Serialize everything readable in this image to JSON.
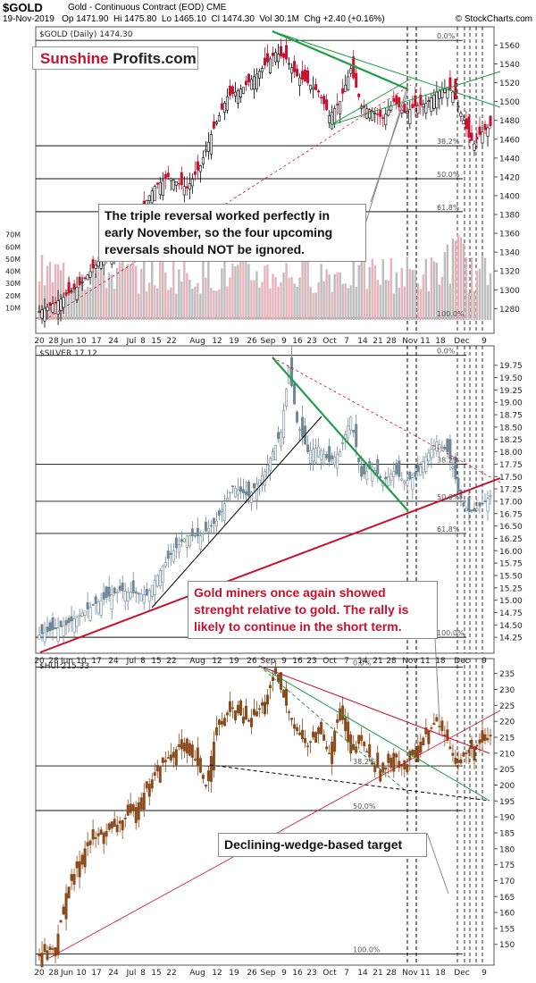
{
  "header": {
    "symbol": "$GOLD",
    "description": "Gold - Continuous Contract (EOD)  CME",
    "date": "19-Nov-2019",
    "ohlc": "Op 1471.90  Hi 1475.80  Lo 1465.10  Cl 1474.30  Vol 30.1M  Chg +2.40 (+0.16%)",
    "brand": "© StockCharts.com"
  },
  "logo": {
    "part1": "Sunshine",
    "part2": "Profits.com"
  },
  "annotations": {
    "gold_note": "The triple reversal worked perfectly in early November, so the four upcoming reversals should NOT be ignored.",
    "silver_note": "Gold miners once again showed strenght relative to gold. The rally is likely to continue in the short term.",
    "hui_note": "Declining-wedge-based target"
  },
  "x_axis_labels": [
    "20",
    "28",
    "Jun",
    "10",
    "17",
    "24",
    "Jul",
    "8",
    "15",
    "22",
    "Aug",
    "12",
    "19",
    "26",
    "Sep",
    "9",
    "16",
    "23",
    "Oct",
    "7",
    "14",
    "21",
    "28",
    "Nov",
    "11",
    "18",
    "Dec",
    "9"
  ],
  "chart_data": [
    {
      "type": "candlestick",
      "title": "$GOLD (Daily) 1474.30",
      "yticks": [
        1280,
        1300,
        1320,
        1340,
        1360,
        1380,
        1400,
        1420,
        1440,
        1460,
        1480,
        1500,
        1520,
        1540,
        1560
      ],
      "ylim": [
        1268,
        1568
      ],
      "volume_ticks": [
        "10M",
        "20M",
        "30M",
        "40M",
        "50M",
        "60M",
        "70M"
      ],
      "fib_labels": [
        "0.0%",
        "38.2%",
        "50.0%",
        "61.8%",
        "100.0%"
      ],
      "fib_levels": [
        1565,
        1453,
        1418,
        1383,
        1270
      ],
      "anchors": [
        [
          0,
          1277
        ],
        [
          8,
          1290
        ],
        [
          15,
          1305
        ],
        [
          22,
          1330
        ],
        [
          28,
          1346
        ],
        [
          33,
          1368
        ],
        [
          38,
          1385
        ],
        [
          43,
          1410
        ],
        [
          48,
          1420
        ],
        [
          55,
          1408
        ],
        [
          60,
          1432
        ],
        [
          64,
          1465
        ],
        [
          70,
          1505
        ],
        [
          76,
          1515
        ],
        [
          82,
          1532
        ],
        [
          88,
          1552
        ],
        [
          92,
          1545
        ],
        [
          96,
          1527
        ],
        [
          100,
          1520
        ],
        [
          104,
          1510
        ],
        [
          108,
          1485
        ],
        [
          112,
          1500
        ],
        [
          116,
          1535
        ],
        [
          120,
          1495
        ],
        [
          124,
          1490
        ],
        [
          128,
          1482
        ],
        [
          132,
          1500
        ],
        [
          136,
          1488
        ],
        [
          140,
          1495
        ],
        [
          144,
          1498
        ],
        [
          148,
          1510
        ],
        [
          152,
          1515
        ],
        [
          154,
          1510
        ],
        [
          156,
          1495
        ],
        [
          158,
          1480
        ],
        [
          160,
          1462
        ],
        [
          162,
          1455
        ],
        [
          164,
          1465
        ],
        [
          166,
          1470
        ],
        [
          168,
          1474.3
        ]
      ]
    },
    {
      "type": "candlestick",
      "title": "$SILVER 17.12",
      "yticks": [
        14.25,
        14.5,
        14.75,
        15.0,
        15.25,
        15.5,
        15.75,
        16.0,
        16.25,
        16.5,
        16.75,
        17.0,
        17.25,
        17.5,
        17.75,
        18.0,
        18.25,
        18.5,
        18.75,
        19.0,
        19.25,
        19.5,
        19.75
      ],
      "ylim": [
        14.18,
        19.98
      ],
      "fib_labels": [
        "0.0%",
        "38.2%",
        "50.0%",
        "61.8%",
        "100.0%"
      ],
      "fib_levels": [
        19.95,
        17.75,
        17.0,
        16.35,
        14.25
      ],
      "anchors": [
        [
          0,
          14.3
        ],
        [
          10,
          14.5
        ],
        [
          20,
          14.9
        ],
        [
          30,
          15.2
        ],
        [
          40,
          15.1
        ],
        [
          45,
          15.6
        ],
        [
          50,
          16.0
        ],
        [
          55,
          16.3
        ],
        [
          60,
          16.3
        ],
        [
          66,
          16.6
        ],
        [
          72,
          17.3
        ],
        [
          78,
          17.1
        ],
        [
          84,
          17.6
        ],
        [
          90,
          18.4
        ],
        [
          93,
          19.7
        ],
        [
          96,
          18.6
        ],
        [
          100,
          18.0
        ],
        [
          104,
          18.1
        ],
        [
          108,
          17.8
        ],
        [
          112,
          18.0
        ],
        [
          116,
          18.7
        ],
        [
          120,
          17.5
        ],
        [
          124,
          17.7
        ],
        [
          128,
          17.4
        ],
        [
          132,
          17.6
        ],
        [
          136,
          17.4
        ],
        [
          140,
          17.5
        ],
        [
          144,
          17.9
        ],
        [
          148,
          18.2
        ],
        [
          152,
          18.0
        ],
        [
          154,
          17.7
        ],
        [
          156,
          17.2
        ],
        [
          158,
          16.9
        ],
        [
          160,
          16.8
        ],
        [
          162,
          16.8
        ],
        [
          164,
          16.9
        ],
        [
          166,
          17.0
        ],
        [
          168,
          17.12
        ]
      ]
    },
    {
      "type": "candlestick",
      "title": "$HUI 215.33",
      "yticks": [
        150,
        155,
        160,
        165,
        170,
        175,
        180,
        185,
        190,
        195,
        200,
        205,
        210,
        215,
        220,
        225,
        230,
        235
      ],
      "ylim": [
        146,
        238
      ],
      "fib_labels": [
        "0.0%",
        "38.2%",
        "50.0%",
        "100.0%"
      ],
      "fib_levels": [
        237,
        206,
        192,
        147
      ],
      "anchors": [
        [
          0,
          147
        ],
        [
          6,
          149
        ],
        [
          10,
          166
        ],
        [
          14,
          174
        ],
        [
          18,
          182
        ],
        [
          22,
          184
        ],
        [
          26,
          186
        ],
        [
          30,
          188
        ],
        [
          36,
          193
        ],
        [
          40,
          199
        ],
        [
          46,
          207
        ],
        [
          52,
          212
        ],
        [
          58,
          208
        ],
        [
          62,
          200
        ],
        [
          66,
          218
        ],
        [
          72,
          224
        ],
        [
          78,
          220
        ],
        [
          84,
          226
        ],
        [
          88,
          235
        ],
        [
          92,
          225
        ],
        [
          96,
          217
        ],
        [
          100,
          212
        ],
        [
          104,
          218
        ],
        [
          108,
          210
        ],
        [
          112,
          224
        ],
        [
          116,
          210
        ],
        [
          120,
          214
        ],
        [
          124,
          207
        ],
        [
          128,
          204
        ],
        [
          132,
          210
        ],
        [
          136,
          205
        ],
        [
          140,
          211
        ],
        [
          144,
          216
        ],
        [
          148,
          220
        ],
        [
          152,
          214
        ],
        [
          154,
          210
        ],
        [
          156,
          207
        ],
        [
          158,
          209
        ],
        [
          160,
          211
        ],
        [
          162,
          212
        ],
        [
          164,
          213
        ],
        [
          166,
          214
        ],
        [
          168,
          215.33
        ]
      ]
    }
  ],
  "colors": {
    "up": "#000000",
    "down": "#c8102e",
    "silver": "#6f8796",
    "hui": "#8a4a1c",
    "green": "#1e9e45",
    "red": "#c8102e",
    "volume": "#aaaaaa"
  }
}
